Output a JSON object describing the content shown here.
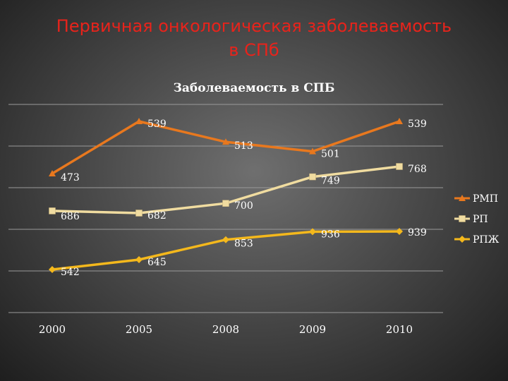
{
  "slide": {
    "title_line1": "Первичная онкологическая заболеваемость",
    "title_line2": "в СПб"
  },
  "chart_data": {
    "type": "line",
    "title": "Заболеваемость в СПБ",
    "xlabel": "",
    "ylabel": "",
    "categories": [
      "2000",
      "2005",
      "2008",
      "2009",
      "2010"
    ],
    "grid": true,
    "legend_position": "right",
    "series": [
      {
        "name": "РМП",
        "color": "#e8781e",
        "marker": "triangle",
        "values": [
          473,
          539,
          513,
          501,
          539
        ]
      },
      {
        "name": "РП",
        "color": "#f0dca0",
        "marker": "square",
        "values": [
          686,
          682,
          700,
          749,
          768
        ]
      },
      {
        "name": "РПЖ",
        "color": "#f4b81c",
        "marker": "diamond",
        "values": [
          542,
          645,
          853,
          936,
          939
        ]
      }
    ]
  }
}
